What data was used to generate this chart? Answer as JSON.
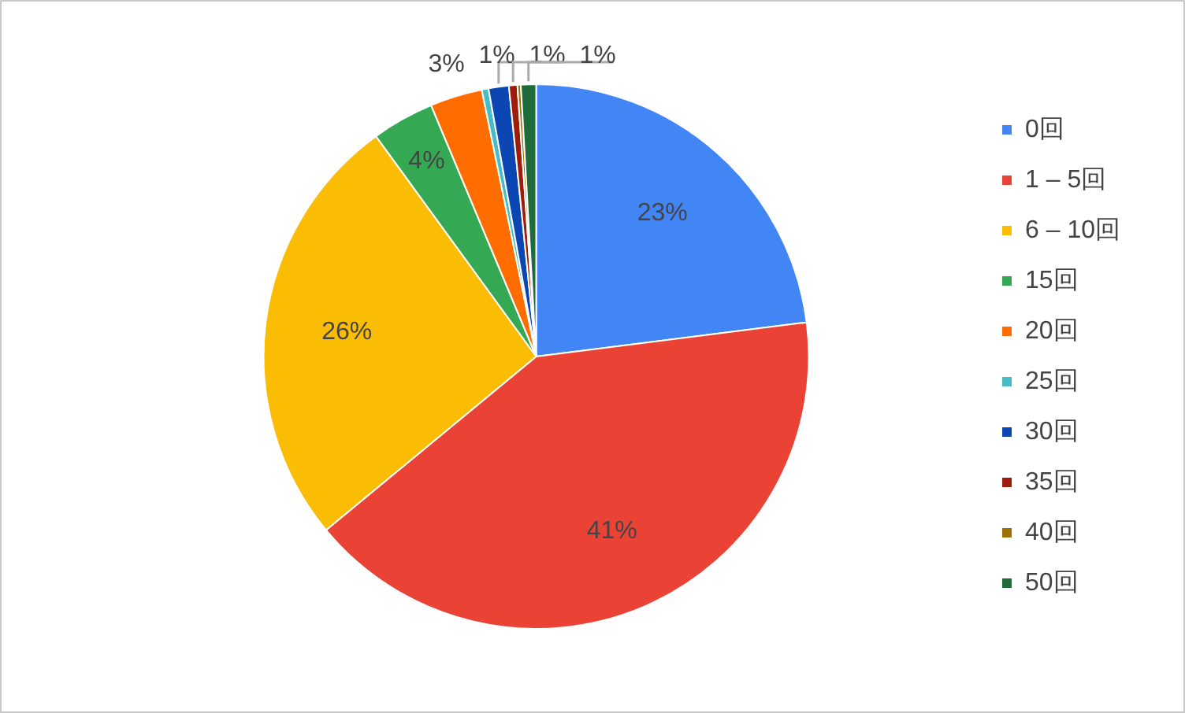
{
  "chart_data": {
    "type": "pie",
    "categories": [
      "0回",
      "1 – 5回",
      "6 – 10回",
      "15回",
      "20回",
      "25回",
      "30回",
      "35回",
      "40回",
      "50回"
    ],
    "values": [
      23,
      41,
      26,
      3.7,
      3.1,
      0.4,
      1.2,
      0.5,
      0.2,
      0.9
    ],
    "colors": [
      "#4285f4",
      "#ea4335",
      "#fbbc04",
      "#34a853",
      "#ff6d01",
      "#46bdc6",
      "#0b46b3",
      "#9e1c0c",
      "#a07100",
      "#1e6b3b"
    ],
    "value_labels": [
      "23%",
      "41%",
      "26%",
      "4%",
      "3%",
      null,
      "1%",
      "1%",
      null,
      "1%"
    ],
    "legend": "right"
  }
}
